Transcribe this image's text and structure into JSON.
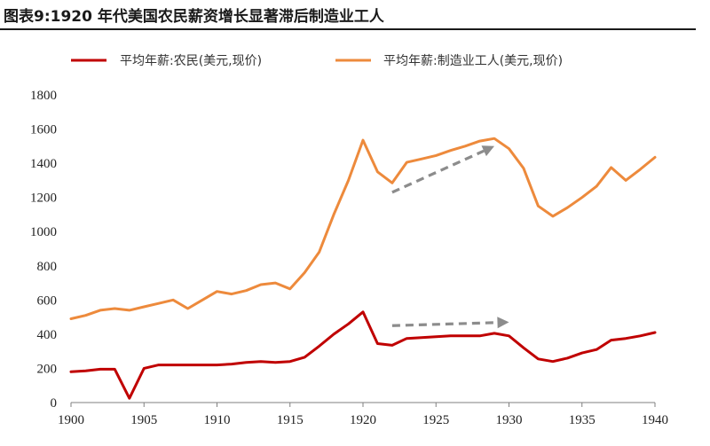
{
  "title": "图表9:1920 年代美国农民薪资增长显著滞后制造业工人",
  "chart_data": {
    "type": "line",
    "x": [
      1900,
      1901,
      1902,
      1903,
      1904,
      1905,
      1906,
      1907,
      1908,
      1909,
      1910,
      1911,
      1912,
      1913,
      1914,
      1915,
      1916,
      1917,
      1918,
      1919,
      1920,
      1921,
      1922,
      1923,
      1924,
      1925,
      1926,
      1927,
      1928,
      1929,
      1930,
      1931,
      1932,
      1933,
      1934,
      1935,
      1936,
      1937,
      1938,
      1939,
      1940
    ],
    "series": [
      {
        "name": "平均年薪:农民(美元,现价)",
        "color": "#c00000",
        "values": [
          180,
          185,
          195,
          195,
          25,
          200,
          220,
          220,
          220,
          220,
          220,
          225,
          235,
          240,
          235,
          240,
          265,
          330,
          400,
          460,
          530,
          345,
          335,
          375,
          380,
          385,
          390,
          390,
          390,
          405,
          390,
          320,
          255,
          240,
          260,
          290,
          310,
          365,
          375,
          390,
          410
        ]
      },
      {
        "name": "平均年薪:制造业工人(美元,现价)",
        "color": "#ed8a3c",
        "values": [
          490,
          510,
          540,
          550,
          540,
          560,
          580,
          600,
          550,
          600,
          650,
          635,
          655,
          690,
          700,
          665,
          760,
          880,
          1100,
          1300,
          1535,
          1350,
          1285,
          1405,
          1425,
          1445,
          1475,
          1500,
          1530,
          1545,
          1485,
          1370,
          1150,
          1090,
          1140,
          1200,
          1265,
          1375,
          1300,
          1365,
          1435
        ]
      }
    ],
    "xlim": [
      1900,
      1940
    ],
    "ylim": [
      0,
      1800
    ],
    "x_ticks": [
      1900,
      1905,
      1910,
      1915,
      1920,
      1925,
      1930,
      1935,
      1940
    ],
    "y_ticks": [
      0,
      200,
      400,
      600,
      800,
      1000,
      1200,
      1400,
      1600,
      1800
    ],
    "grid": false,
    "legend_position": "top",
    "annotations": [
      {
        "type": "dashed-arrow",
        "color": "#8c8c8c",
        "from": [
          1922,
          1230
        ],
        "to": [
          1929,
          1500
        ]
      },
      {
        "type": "dashed-arrow",
        "color": "#8c8c8c",
        "from": [
          1922,
          450
        ],
        "to": [
          1930,
          470
        ]
      }
    ]
  }
}
